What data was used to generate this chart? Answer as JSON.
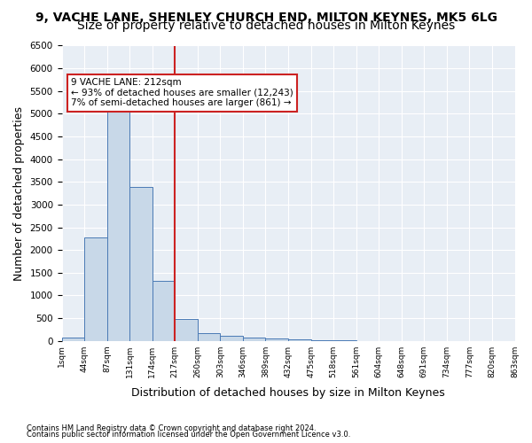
{
  "title1": "9, VACHE LANE, SHENLEY CHURCH END, MILTON KEYNES, MK5 6LG",
  "title2": "Size of property relative to detached houses in Milton Keynes",
  "xlabel": "Distribution of detached houses by size in Milton Keynes",
  "ylabel": "Number of detached properties",
  "footnote1": "Contains HM Land Registry data © Crown copyright and database right 2024.",
  "footnote2": "Contains public sector information licensed under the Open Government Licence v3.0.",
  "bin_labels": [
    "1sqm",
    "44sqm",
    "87sqm",
    "131sqm",
    "174sqm",
    "217sqm",
    "260sqm",
    "303sqm",
    "346sqm",
    "389sqm",
    "432sqm",
    "475sqm",
    "518sqm",
    "561sqm",
    "604sqm",
    "648sqm",
    "691sqm",
    "734sqm",
    "777sqm",
    "820sqm",
    "863sqm"
  ],
  "bar_heights": [
    75,
    2280,
    5430,
    3390,
    1320,
    480,
    165,
    115,
    80,
    55,
    30,
    10,
    5,
    2,
    1,
    1,
    0,
    0,
    0,
    0
  ],
  "bar_color": "#c8d8e8",
  "bar_edge_color": "#4a7ab5",
  "vline_x": 5,
  "vline_color": "#cc2222",
  "annotation_text": "9 VACHE LANE: 212sqm\n← 93% of detached houses are smaller (12,243)\n7% of semi-detached houses are larger (861) →",
  "annotation_box_color": "#ffffff",
  "annotation_box_edge": "#cc2222",
  "ylim": [
    0,
    6500
  ],
  "yticks": [
    0,
    500,
    1000,
    1500,
    2000,
    2500,
    3000,
    3500,
    4000,
    4500,
    5000,
    5500,
    6000,
    6500
  ],
  "background_color": "#e8eef5",
  "title1_fontsize": 10,
  "title2_fontsize": 10,
  "xlabel_fontsize": 9,
  "ylabel_fontsize": 9
}
